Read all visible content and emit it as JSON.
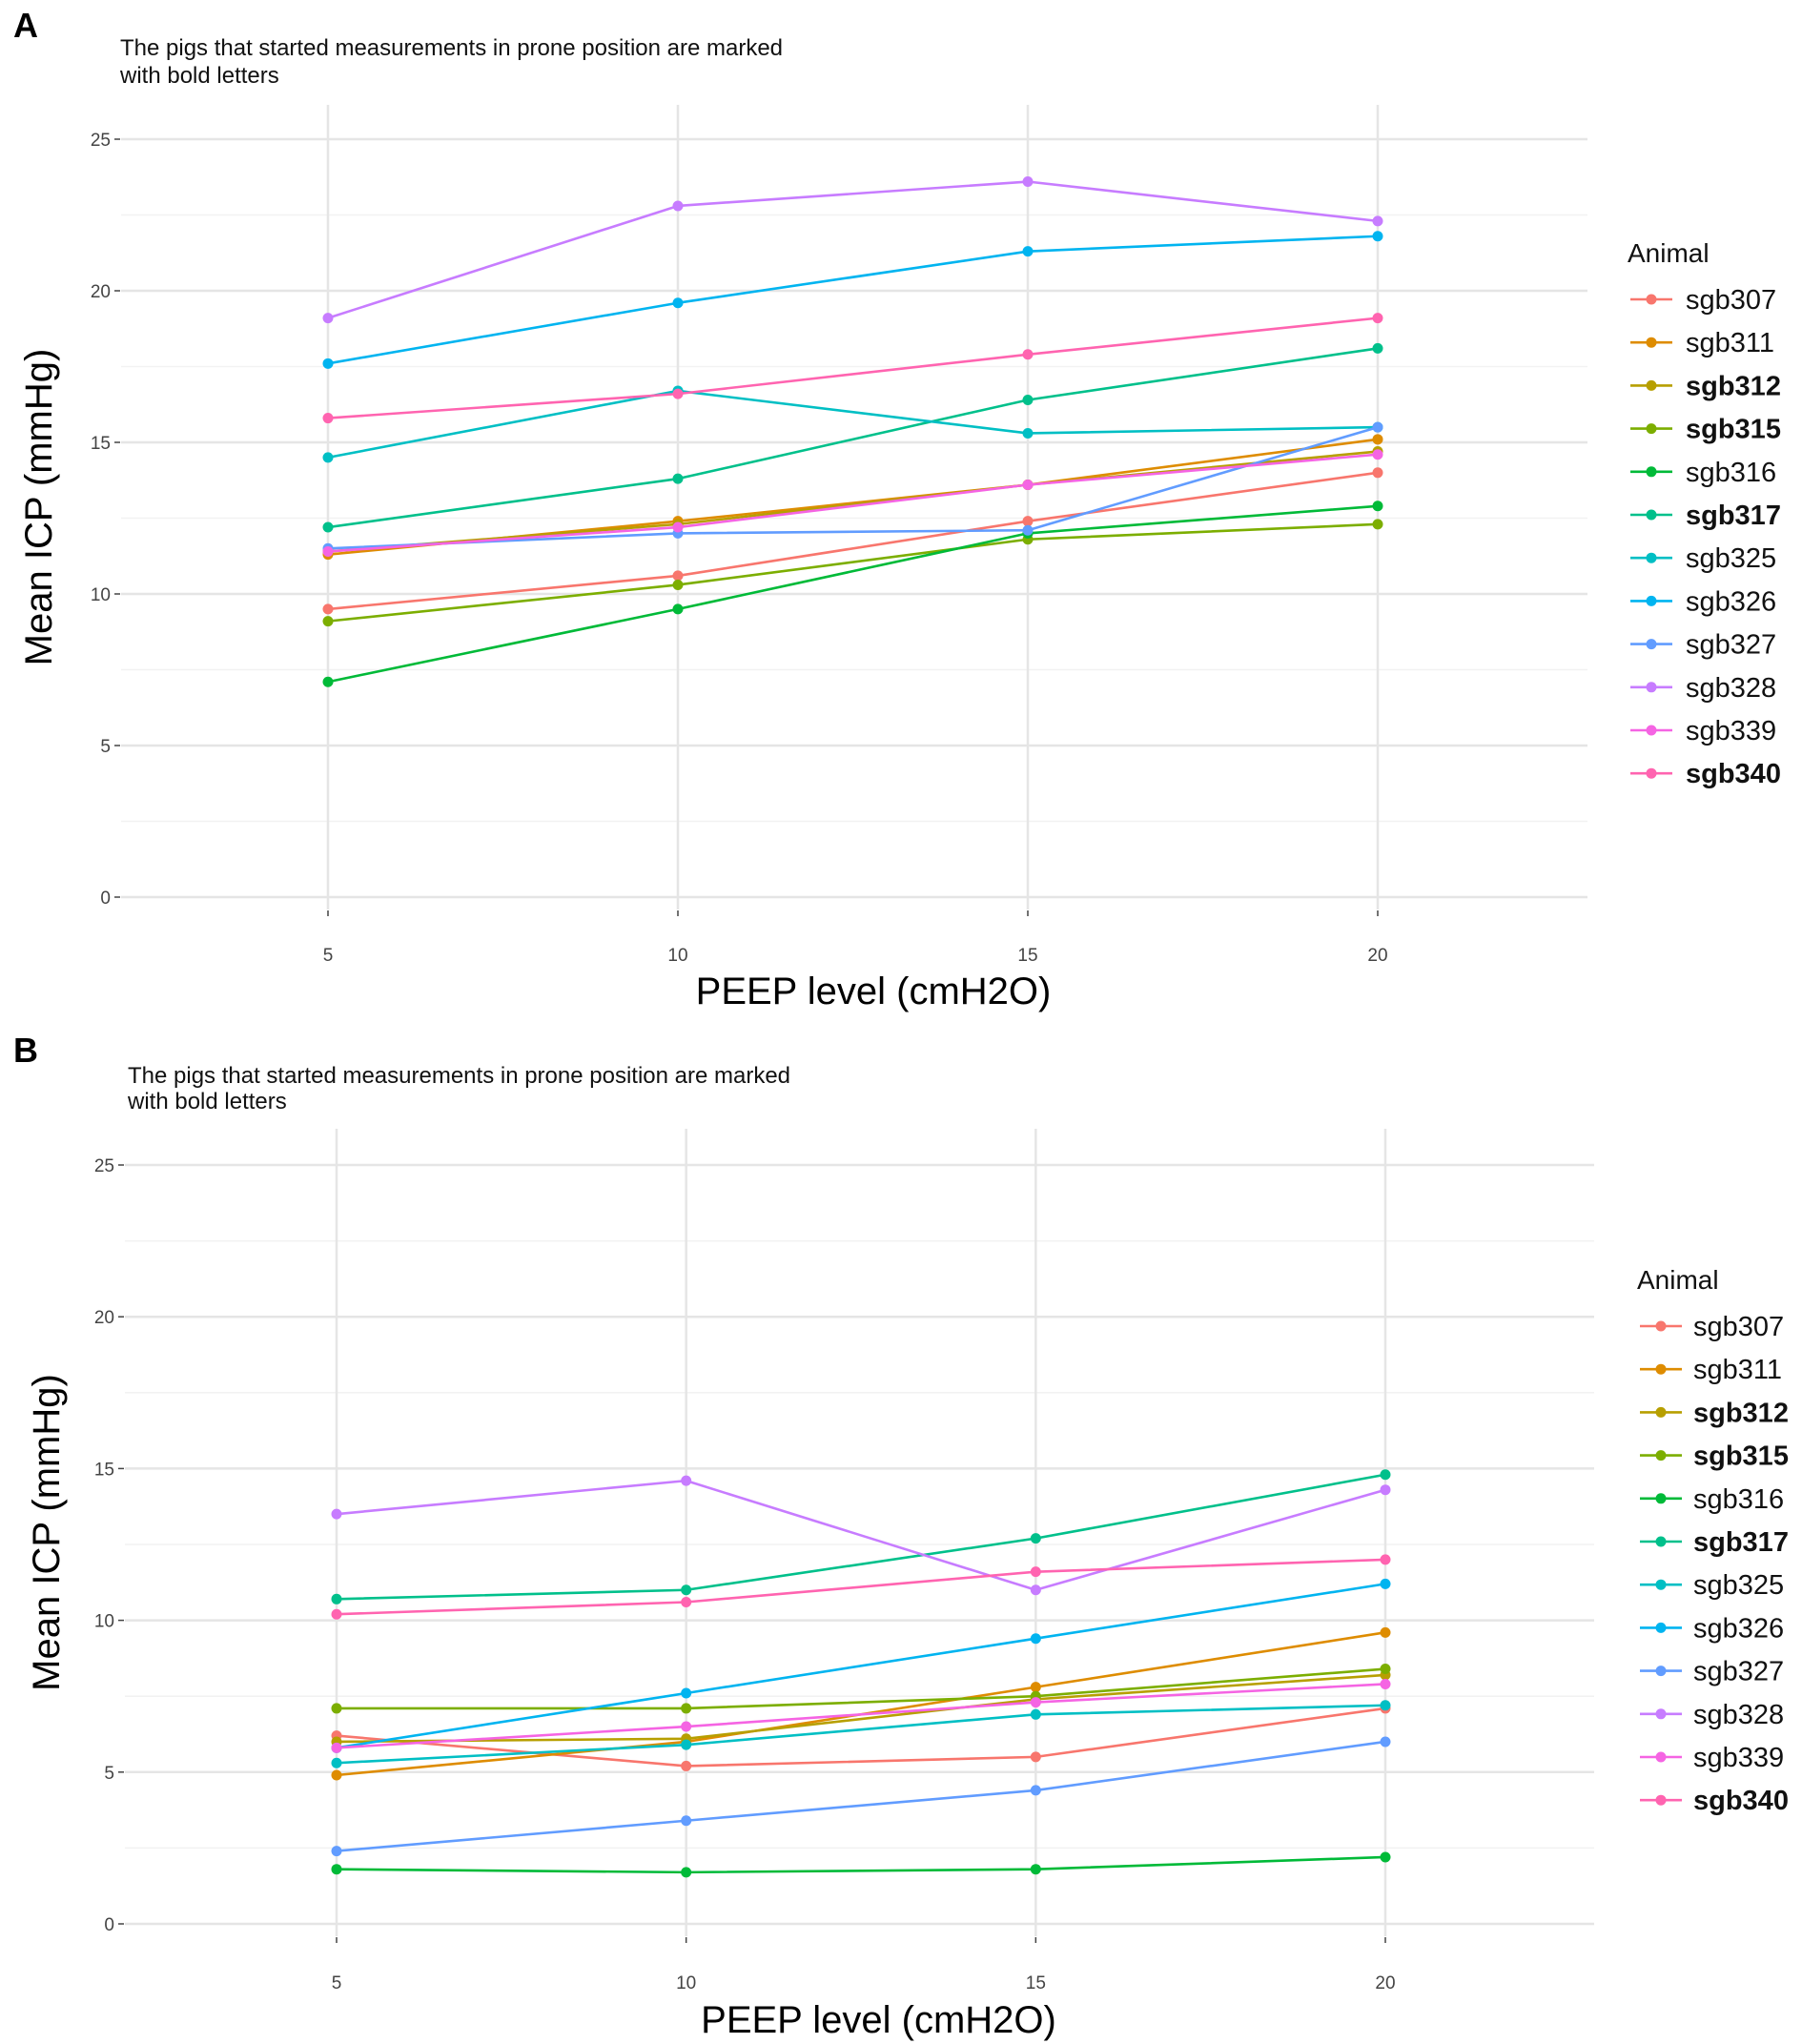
{
  "colors": {
    "sgb307": "#F8766D",
    "sgb311": "#DE8C00",
    "sgb312": "#B79F00",
    "sgb315": "#7CAE00",
    "sgb316": "#00BA38",
    "sgb317": "#00C08B",
    "sgb325": "#00BFC4",
    "sgb326": "#00B4F0",
    "sgb327": "#619CFF",
    "sgb328": "#C77CFF",
    "sgb339": "#F564E3",
    "sgb340": "#FF64B0",
    "grid_major": "#E5E5E5",
    "grid_minor": "#F2F2F2"
  },
  "chart_data": [
    {
      "panel_label": "A",
      "type": "line",
      "subtitle_lines": [
        "The pigs that started measurements in prone position are marked",
        "with bold letters"
      ],
      "xlabel": "PEEP level (cmH2O)",
      "ylabel": "Mean ICP (mmHg)",
      "x": [
        5,
        10,
        15,
        20
      ],
      "x_ticks": [
        "5",
        "10",
        "15",
        "20"
      ],
      "y_ticks": [
        "0",
        "5",
        "10",
        "15",
        "20",
        "25"
      ],
      "xlim": [
        2,
        23
      ],
      "ylim": [
        0,
        25
      ],
      "grid": true,
      "legend_title": "Animal",
      "legend_position": "right",
      "series": [
        {
          "name": "sgb307",
          "bold": false,
          "values": [
            9.5,
            10.6,
            12.4,
            14.0
          ]
        },
        {
          "name": "sgb311",
          "bold": false,
          "values": [
            11.3,
            12.4,
            13.6,
            15.1
          ]
        },
        {
          "name": "sgb312",
          "bold": true,
          "values": [
            11.4,
            12.3,
            13.6,
            14.7
          ]
        },
        {
          "name": "sgb315",
          "bold": true,
          "values": [
            9.1,
            10.3,
            11.8,
            12.3
          ]
        },
        {
          "name": "sgb316",
          "bold": false,
          "values": [
            7.1,
            9.5,
            12.0,
            12.9
          ]
        },
        {
          "name": "sgb317",
          "bold": true,
          "values": [
            12.2,
            13.8,
            16.4,
            18.1
          ]
        },
        {
          "name": "sgb325",
          "bold": false,
          "values": [
            14.5,
            16.7,
            15.3,
            15.5
          ]
        },
        {
          "name": "sgb326",
          "bold": false,
          "values": [
            17.6,
            19.6,
            21.3,
            21.8
          ]
        },
        {
          "name": "sgb327",
          "bold": false,
          "values": [
            11.5,
            12.0,
            12.1,
            15.5
          ]
        },
        {
          "name": "sgb328",
          "bold": false,
          "values": [
            19.1,
            22.8,
            23.6,
            22.3
          ]
        },
        {
          "name": "sgb339",
          "bold": false,
          "values": [
            11.4,
            12.2,
            13.6,
            14.6
          ]
        },
        {
          "name": "sgb340",
          "bold": true,
          "values": [
            15.8,
            16.6,
            17.9,
            19.1
          ]
        }
      ]
    },
    {
      "panel_label": "B",
      "type": "line",
      "subtitle_lines": [
        "The pigs that started measurements in prone position are marked",
        "with bold letters"
      ],
      "xlabel": "PEEP level (cmH2O)",
      "ylabel": "Mean ICP (mmHg)",
      "x": [
        5,
        10,
        15,
        20
      ],
      "x_ticks": [
        "5",
        "10",
        "15",
        "20"
      ],
      "y_ticks": [
        "0",
        "5",
        "10",
        "15",
        "20",
        "25"
      ],
      "xlim": [
        2,
        23
      ],
      "ylim": [
        0,
        25
      ],
      "grid": true,
      "legend_title": "Animal",
      "legend_position": "right",
      "series": [
        {
          "name": "sgb307",
          "bold": false,
          "values": [
            6.2,
            5.2,
            5.5,
            7.1
          ]
        },
        {
          "name": "sgb311",
          "bold": false,
          "values": [
            4.9,
            6.0,
            7.8,
            9.6
          ]
        },
        {
          "name": "sgb312",
          "bold": true,
          "values": [
            6.0,
            6.1,
            7.4,
            8.2
          ]
        },
        {
          "name": "sgb315",
          "bold": true,
          "values": [
            7.1,
            7.1,
            7.5,
            8.4
          ]
        },
        {
          "name": "sgb316",
          "bold": false,
          "values": [
            1.8,
            1.7,
            1.8,
            2.2
          ]
        },
        {
          "name": "sgb317",
          "bold": true,
          "values": [
            10.7,
            11.0,
            12.7,
            14.8
          ]
        },
        {
          "name": "sgb325",
          "bold": false,
          "values": [
            5.3,
            5.9,
            6.9,
            7.2
          ]
        },
        {
          "name": "sgb326",
          "bold": false,
          "values": [
            5.8,
            7.6,
            9.4,
            11.2
          ]
        },
        {
          "name": "sgb327",
          "bold": false,
          "values": [
            2.4,
            3.4,
            4.4,
            6.0
          ]
        },
        {
          "name": "sgb328",
          "bold": false,
          "values": [
            13.5,
            14.6,
            11.0,
            14.3
          ]
        },
        {
          "name": "sgb339",
          "bold": false,
          "values": [
            5.8,
            6.5,
            7.3,
            7.9
          ]
        },
        {
          "name": "sgb340",
          "bold": true,
          "values": [
            10.2,
            10.6,
            11.6,
            12.0
          ]
        }
      ]
    }
  ]
}
